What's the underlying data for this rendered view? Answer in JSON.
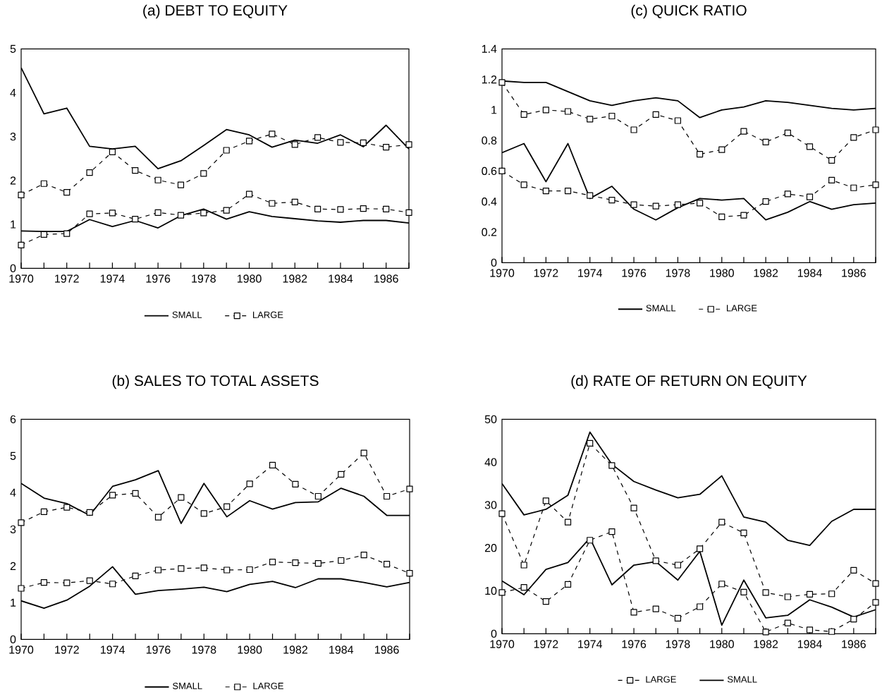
{
  "chart_data": [
    {
      "type": "line",
      "title": "(a) DEBT TO EQUITY",
      "x": [
        1970,
        1971,
        1972,
        1973,
        1974,
        1975,
        1976,
        1977,
        1978,
        1979,
        1980,
        1981,
        1982,
        1983,
        1984,
        1985,
        1986,
        1987
      ],
      "xlim": [
        1970,
        1987
      ],
      "xticks": [
        1970,
        {
          "value": 1971,
          "label": null
        },
        1972,
        {
          "value": 1973,
          "label": null
        },
        1974,
        {
          "value": 1975,
          "label": null
        },
        1976,
        {
          "value": 1977,
          "label": null
        },
        1978,
        {
          "value": 1979,
          "label": null
        },
        1980,
        {
          "value": 1981,
          "label": null
        },
        1982,
        {
          "value": 1983,
          "label": null
        },
        1984,
        {
          "value": 1985,
          "label": null
        },
        1986,
        {
          "value": 1987,
          "label": null
        }
      ],
      "ylim": [
        0,
        5
      ],
      "yticks": [
        0,
        1,
        2,
        3,
        4,
        5
      ],
      "legend": "bottom",
      "series": [
        {
          "name": "SMALL",
          "color": "#000000",
          "line_style": "solid",
          "marker": "none",
          "values": [
            4.57,
            3.52,
            3.65,
            2.78,
            2.72,
            2.78,
            2.27,
            2.45,
            2.8,
            3.16,
            3.04,
            2.76,
            2.92,
            2.85,
            3.04,
            2.77,
            3.26,
            2.72
          ]
        },
        {
          "name": "LARGE",
          "color": "#000000",
          "line_style": "dashed",
          "marker": "square",
          "values": [
            1.67,
            1.93,
            1.73,
            2.18,
            2.65,
            2.23,
            2.01,
            1.9,
            2.16,
            2.69,
            2.9,
            3.06,
            2.82,
            2.98,
            2.87,
            2.86,
            2.76,
            2.82
          ]
        },
        {
          "color": "#000000",
          "line_style": "solid",
          "marker": "none",
          "values": [
            0.85,
            0.84,
            0.84,
            1.11,
            0.95,
            1.09,
            0.92,
            1.2,
            1.35,
            1.12,
            1.29,
            1.18,
            1.13,
            1.08,
            1.05,
            1.09,
            1.09,
            1.03
          ]
        },
        {
          "color": "#000000",
          "line_style": "dashed",
          "marker": "square",
          "values": [
            0.53,
            0.77,
            0.79,
            1.24,
            1.26,
            1.12,
            1.27,
            1.21,
            1.26,
            1.32,
            1.69,
            1.48,
            1.51,
            1.35,
            1.34,
            1.36,
            1.35,
            1.27
          ]
        }
      ]
    },
    {
      "type": "line",
      "title": "(c) QUICK RATIO",
      "x": [
        1970,
        1971,
        1972,
        1973,
        1974,
        1975,
        1976,
        1977,
        1978,
        1979,
        1980,
        1981,
        1982,
        1983,
        1984,
        1985,
        1986,
        1987
      ],
      "xlim": [
        1970,
        1987
      ],
      "xticks": [
        1970,
        {
          "value": 1971,
          "label": null
        },
        1972,
        {
          "value": 1973,
          "label": null
        },
        1974,
        {
          "value": 1975,
          "label": null
        },
        1976,
        {
          "value": 1977,
          "label": null
        },
        1978,
        {
          "value": 1979,
          "label": null
        },
        1980,
        {
          "value": 1981,
          "label": null
        },
        1982,
        {
          "value": 1983,
          "label": null
        },
        1984,
        {
          "value": 1985,
          "label": null
        },
        1986,
        {
          "value": 1987,
          "label": null
        }
      ],
      "ylim": [
        0,
        1.4
      ],
      "yticks": [
        0,
        0.2,
        0.4,
        0.6,
        0.8,
        1,
        1.2,
        1.4
      ],
      "legend": "bottom",
      "series": [
        {
          "name": "SMALL",
          "color": "#000000",
          "line_style": "solid",
          "marker": "none",
          "values": [
            1.19,
            1.18,
            1.18,
            1.12,
            1.06,
            1.03,
            1.06,
            1.08,
            1.06,
            0.95,
            1.0,
            1.02,
            1.06,
            1.05,
            1.03,
            1.01,
            1.0,
            1.01
          ]
        },
        {
          "name": "LARGE",
          "color": "#000000",
          "line_style": "dashed",
          "marker": "square",
          "values": [
            1.18,
            0.97,
            1.0,
            0.99,
            0.94,
            0.96,
            0.87,
            0.97,
            0.93,
            0.71,
            0.74,
            0.86,
            0.79,
            0.85,
            0.76,
            0.67,
            0.82,
            0.87
          ]
        },
        {
          "color": "#000000",
          "line_style": "solid",
          "marker": "none",
          "values": [
            0.72,
            0.78,
            0.53,
            0.78,
            0.42,
            0.5,
            0.35,
            0.28,
            0.36,
            0.42,
            0.41,
            0.42,
            0.28,
            0.33,
            0.4,
            0.35,
            0.38,
            0.39
          ]
        },
        {
          "color": "#000000",
          "line_style": "dashed",
          "marker": "square",
          "values": [
            0.6,
            0.51,
            0.47,
            0.47,
            0.44,
            0.41,
            0.38,
            0.37,
            0.38,
            0.39,
            0.3,
            0.31,
            0.4,
            0.45,
            0.43,
            0.54,
            0.49,
            0.51
          ]
        }
      ]
    },
    {
      "type": "line",
      "title": "(b) SALES TO TOTAL ASSETS",
      "x": [
        1970,
        1971,
        1972,
        1973,
        1974,
        1975,
        1976,
        1977,
        1978,
        1979,
        1980,
        1981,
        1982,
        1983,
        1984,
        1985,
        1986,
        1987
      ],
      "xlim": [
        1970,
        1987
      ],
      "xticks": [
        1970,
        {
          "value": 1971,
          "label": null
        },
        1972,
        {
          "value": 1973,
          "label": null
        },
        1974,
        {
          "value": 1975,
          "label": null
        },
        1976,
        {
          "value": 1977,
          "label": null
        },
        1978,
        {
          "value": 1979,
          "label": null
        },
        1980,
        {
          "value": 1981,
          "label": null
        },
        1982,
        {
          "value": 1983,
          "label": null
        },
        1984,
        {
          "value": 1985,
          "label": null
        },
        1986,
        {
          "value": 1987,
          "label": null
        }
      ],
      "ylim": [
        0,
        6
      ],
      "yticks": [
        0,
        1,
        2,
        3,
        4,
        5,
        6
      ],
      "legend": "bottom",
      "series": [
        {
          "name": "SMALL",
          "color": "#000000",
          "line_style": "solid",
          "marker": "none",
          "values": [
            4.25,
            3.85,
            3.7,
            3.38,
            4.17,
            4.35,
            4.6,
            3.16,
            4.25,
            3.34,
            3.78,
            3.55,
            3.73,
            3.75,
            4.12,
            3.9,
            3.38,
            3.38
          ]
        },
        {
          "name": "LARGE",
          "color": "#000000",
          "line_style": "dashed",
          "marker": "square",
          "values": [
            3.18,
            3.48,
            3.6,
            3.46,
            3.93,
            3.98,
            3.33,
            3.87,
            3.43,
            3.62,
            4.24,
            4.75,
            4.23,
            3.9,
            4.5,
            5.08,
            3.9,
            4.1
          ]
        },
        {
          "color": "#000000",
          "line_style": "solid",
          "marker": "none",
          "values": [
            1.05,
            0.85,
            1.07,
            1.45,
            1.98,
            1.23,
            1.33,
            1.37,
            1.42,
            1.3,
            1.5,
            1.58,
            1.41,
            1.65,
            1.65,
            1.55,
            1.43,
            1.55
          ]
        },
        {
          "color": "#000000",
          "line_style": "dashed",
          "marker": "square",
          "values": [
            1.39,
            1.55,
            1.54,
            1.6,
            1.51,
            1.73,
            1.89,
            1.93,
            1.95,
            1.89,
            1.9,
            2.11,
            2.09,
            2.07,
            2.15,
            2.3,
            2.05,
            1.8
          ]
        }
      ]
    },
    {
      "type": "line",
      "title": "(d) RATE OF RETURN ON EQUITY",
      "x": [
        1970,
        1971,
        1972,
        1973,
        1974,
        1975,
        1976,
        1977,
        1978,
        1979,
        1980,
        1981,
        1982,
        1983,
        1984,
        1985,
        1986,
        1987
      ],
      "xlim": [
        1970,
        1987
      ],
      "xticks": [
        1970,
        {
          "value": 1971,
          "label": null
        },
        1972,
        {
          "value": 1973,
          "label": null
        },
        1974,
        {
          "value": 1975,
          "label": null
        },
        1976,
        {
          "value": 1977,
          "label": null
        },
        1978,
        {
          "value": 1979,
          "label": null
        },
        1980,
        {
          "value": 1981,
          "label": null
        },
        1982,
        {
          "value": 1983,
          "label": null
        },
        1984,
        {
          "value": 1985,
          "label": null
        },
        1986,
        {
          "value": 1987,
          "label": null
        }
      ],
      "ylim": [
        0,
        50
      ],
      "yticks": [
        0,
        10,
        20,
        30,
        40,
        50
      ],
      "legend": "bottom",
      "series": [
        {
          "name": "LARGE",
          "color": "#000000",
          "line_style": "dashed",
          "marker": "square",
          "values": [
            28,
            16,
            31,
            26,
            44.4,
            39.2,
            29.3,
            17,
            16,
            19.8,
            26,
            23.5,
            9.6,
            8.6,
            9.2,
            9.3,
            14.8,
            11.7
          ]
        },
        {
          "name": "SMALL",
          "color": "#000000",
          "line_style": "solid",
          "marker": "none",
          "values": [
            35,
            27.7,
            29,
            32.3,
            47,
            39.5,
            35.5,
            33.5,
            31.7,
            32.5,
            36.8,
            27.2,
            26,
            21.8,
            20.6,
            26.2,
            29,
            29
          ]
        },
        {
          "color": "#000000",
          "line_style": "dashed",
          "marker": "square",
          "values": [
            9.6,
            10.8,
            7.5,
            11.5,
            21.8,
            23.8,
            5,
            5.8,
            3.6,
            6.3,
            11.6,
            9.7,
            0.4,
            2.5,
            0.9,
            0.5,
            3.4,
            7.3
          ]
        },
        {
          "color": "#000000",
          "line_style": "solid",
          "marker": "none",
          "values": [
            12.3,
            9.1,
            15,
            16.6,
            22.3,
            11.4,
            16,
            16.8,
            12.5,
            19.2,
            2,
            12.5,
            3.7,
            4.3,
            7.9,
            6.2,
            3.9,
            5.6
          ]
        }
      ]
    }
  ]
}
